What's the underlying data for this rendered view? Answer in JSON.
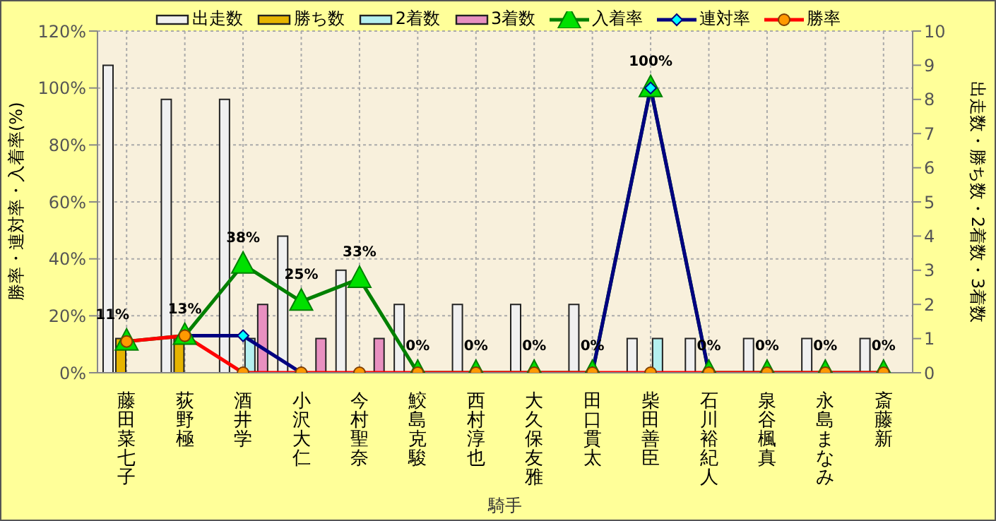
{
  "chart_data": {
    "type": "bar",
    "xlabel": "騎手",
    "ylabel": "勝率・連対率・入着率(%)",
    "y2label": "出走数・勝ち数・2着数・3着数",
    "categories": [
      "藤田菜七子",
      "荻野極",
      "酒井学",
      "小沢大仁",
      "今村聖奈",
      "鮫島克駿",
      "西村淳也",
      "大久保友雅",
      "田口貫太",
      "柴田善臣",
      "石川裕紀人",
      "泉谷楓真",
      "永島まなみ",
      "斎藤新"
    ],
    "series": [
      {
        "name": "出走数",
        "axis": "y2",
        "color": "#f0f0f0",
        "values": [
          9,
          8,
          8,
          4,
          3,
          2,
          2,
          2,
          2,
          1,
          1,
          1,
          1,
          1
        ]
      },
      {
        "name": "勝ち数",
        "axis": "y2",
        "color": "#e6b400",
        "values": [
          1,
          1,
          0,
          0,
          0,
          0,
          0,
          0,
          0,
          0,
          0,
          0,
          0,
          0
        ]
      },
      {
        "name": "2着数",
        "axis": "y2",
        "color": "#b4f0f0",
        "values": [
          0,
          0,
          1,
          0,
          0,
          0,
          0,
          0,
          0,
          1,
          0,
          0,
          0,
          0
        ]
      },
      {
        "name": "3着数",
        "axis": "y2",
        "color": "#e890c0",
        "values": [
          0,
          0,
          2,
          1,
          1,
          0,
          0,
          0,
          0,
          0,
          0,
          0,
          0,
          0
        ]
      },
      {
        "name": "入着率",
        "type": "line",
        "color": "#008000",
        "marker": "triangle",
        "values": [
          11,
          13,
          38,
          25,
          33,
          0,
          0,
          0,
          0,
          100,
          0,
          0,
          0,
          0
        ],
        "value_labels": [
          "11%",
          "13%",
          "38%",
          "25%",
          "33%",
          "0%",
          "0%",
          "0%",
          "0%",
          "100%",
          "0%",
          "0%",
          "0%",
          "0%"
        ]
      },
      {
        "name": "連対率",
        "type": "line",
        "color": "#000080",
        "marker": "diamond",
        "values": [
          null,
          13,
          13,
          0,
          null,
          null,
          null,
          null,
          0,
          100,
          0,
          null,
          null,
          null
        ]
      },
      {
        "name": "勝率",
        "type": "line",
        "color": "#ff0000",
        "marker": "circle",
        "values": [
          11,
          13,
          0,
          0,
          0,
          0,
          0,
          0,
          0,
          0,
          0,
          0,
          0,
          0
        ]
      }
    ],
    "ylim": [
      0,
      120
    ],
    "yticks": [
      {
        "value": 0,
        "label": "0%"
      },
      {
        "value": 20,
        "label": "20%"
      },
      {
        "value": 40,
        "label": "40%"
      },
      {
        "value": 60,
        "label": "60%"
      },
      {
        "value": 80,
        "label": "80%"
      },
      {
        "value": 100,
        "label": "100%"
      },
      {
        "value": 120,
        "label": "120%"
      }
    ],
    "y2lim": [
      0,
      10
    ],
    "y2ticks": [
      0,
      1,
      2,
      3,
      4,
      5,
      6,
      7,
      8,
      9,
      10
    ],
    "grid": true,
    "legend": "top"
  }
}
